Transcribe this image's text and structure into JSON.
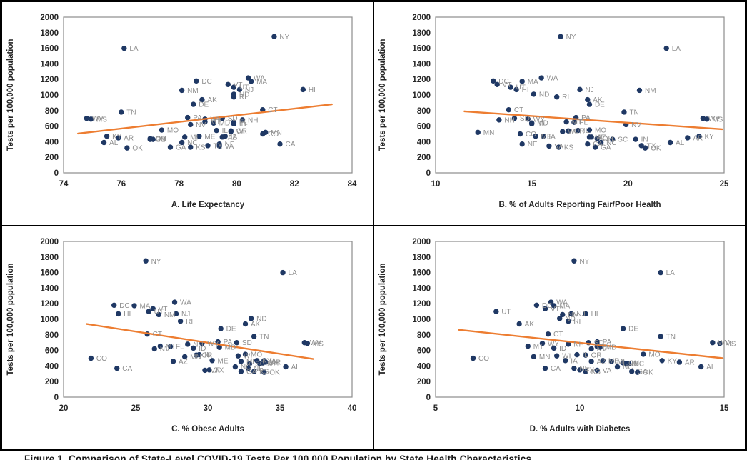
{
  "figure": {
    "caption_partial": "Figure 1. Comparison of State-Level COVID-19 Tests Per 100,000 Population by State Health Characteristics"
  },
  "colors": {
    "point": "#1f3864",
    "trend": "#ed7d31",
    "state_label": "#8f8f8f",
    "axis_text": "#262626",
    "plot_border": "#8c8c8c",
    "outer_border": "#000000",
    "background": "#ffffff"
  },
  "chart_data": {
    "type": "scatter",
    "ylabel": "Tests per 100,000 population",
    "ylim": [
      0,
      2000
    ],
    "yticks": [
      0,
      200,
      400,
      600,
      800,
      1000,
      1200,
      1400,
      1600,
      1800,
      2000
    ],
    "legend": "none",
    "grid": "off",
    "panels": [
      {
        "id": "A",
        "xlabel": "A. Life Expectancy",
        "x_key": "life_expectancy",
        "xlim": [
          74,
          84
        ],
        "xticks": [
          74,
          76,
          78,
          80,
          82,
          84
        ],
        "trend": {
          "x1": 74.5,
          "y1": 505,
          "x2": 83.3,
          "y2": 880
        }
      },
      {
        "id": "B",
        "xlabel": "B. % of Adults Reporting Fair/Poor Health",
        "x_key": "fair_poor_health",
        "xlim": [
          10,
          25
        ],
        "xticks": [
          10,
          15,
          20,
          25
        ],
        "trend": {
          "x1": 11.5,
          "y1": 790,
          "x2": 24.9,
          "y2": 560
        }
      },
      {
        "id": "C",
        "xlabel": "C. % Obese Adults",
        "x_key": "obesity",
        "xlim": [
          20,
          40
        ],
        "xticks": [
          20,
          25,
          30,
          35,
          40
        ],
        "trend": {
          "x1": 21.6,
          "y1": 940,
          "x2": 37.3,
          "y2": 490
        }
      },
      {
        "id": "D",
        "xlabel": "D. % Adults with Diabetes",
        "x_key": "diabetes",
        "xlim": [
          5,
          15
        ],
        "xticks": [
          5,
          10,
          15
        ],
        "trend": {
          "x1": 5.8,
          "y1": 865,
          "x2": 14.95,
          "y2": 500
        }
      }
    ],
    "points": [
      {
        "code": "NY",
        "tests": 1750,
        "life_expectancy": 81.3,
        "fair_poor_health": 16.5,
        "obesity": 25.7,
        "diabetes": 9.8
      },
      {
        "code": "LA",
        "tests": 1600,
        "life_expectancy": 76.1,
        "fair_poor_health": 22.0,
        "obesity": 35.2,
        "diabetes": 12.8
      },
      {
        "code": "WA",
        "tests": 1220,
        "life_expectancy": 80.4,
        "fair_poor_health": 15.5,
        "obesity": 27.7,
        "diabetes": 9.0
      },
      {
        "code": "DC",
        "tests": 1180,
        "life_expectancy": 78.6,
        "fair_poor_health": 13.0,
        "obesity": 23.5,
        "diabetes": 8.5
      },
      {
        "code": "MA",
        "tests": 1175,
        "life_expectancy": 80.5,
        "fair_poor_health": 14.5,
        "obesity": 24.9,
        "diabetes": 9.1
      },
      {
        "code": "VT",
        "tests": 1135,
        "life_expectancy": 79.7,
        "fair_poor_health": 13.2,
        "obesity": 26.2,
        "diabetes": 8.8
      },
      {
        "code": "UT",
        "tests": 1100,
        "life_expectancy": 79.9,
        "fair_poor_health": 13.9,
        "obesity": 25.9,
        "diabetes": 7.1
      },
      {
        "code": "HI",
        "tests": 1070,
        "life_expectancy": 82.3,
        "fair_poor_health": 14.2,
        "obesity": 23.8,
        "diabetes": 10.2
      },
      {
        "code": "NJ",
        "tests": 1070,
        "life_expectancy": 80.1,
        "fair_poor_health": 17.5,
        "obesity": 27.8,
        "diabetes": 9.7
      },
      {
        "code": "NM",
        "tests": 1060,
        "life_expectancy": 78.1,
        "fair_poor_health": 20.6,
        "obesity": 26.6,
        "diabetes": 9.4
      },
      {
        "code": "ND",
        "tests": 1010,
        "life_expectancy": 79.9,
        "fair_poor_health": 15.1,
        "obesity": 33.0,
        "diabetes": 9.3
      },
      {
        "code": "RI",
        "tests": 975,
        "life_expectancy": 79.9,
        "fair_poor_health": 16.3,
        "obesity": 28.1,
        "diabetes": 9.6
      },
      {
        "code": "AK",
        "tests": 940,
        "life_expectancy": 78.8,
        "fair_poor_health": 17.9,
        "obesity": 32.6,
        "diabetes": 7.9
      },
      {
        "code": "DE",
        "tests": 880,
        "life_expectancy": 78.5,
        "fair_poor_health": 18.0,
        "obesity": 30.9,
        "diabetes": 11.5
      },
      {
        "code": "CT",
        "tests": 810,
        "life_expectancy": 80.9,
        "fair_poor_health": 13.8,
        "obesity": 25.8,
        "diabetes": 8.9
      },
      {
        "code": "TN",
        "tests": 780,
        "life_expectancy": 76.0,
        "fair_poor_health": 19.8,
        "obesity": 33.2,
        "diabetes": 12.8
      },
      {
        "code": "PA",
        "tests": 710,
        "life_expectancy": 78.3,
        "fair_poor_health": 17.3,
        "obesity": 30.7,
        "diabetes": 10.6
      },
      {
        "code": "WV",
        "tests": 700,
        "life_expectancy": 74.8,
        "fair_poor_health": 23.9,
        "obesity": 36.7,
        "diabetes": 14.6
      },
      {
        "code": "SD",
        "tests": 700,
        "life_expectancy": 79.5,
        "fair_poor_health": 14.1,
        "obesity": 32.0,
        "diabetes": 10.3
      },
      {
        "code": "MS",
        "tests": 690,
        "life_expectancy": 74.95,
        "fair_poor_health": 24.1,
        "obesity": 36.9,
        "diabetes": 14.85
      },
      {
        "code": "WY",
        "tests": 690,
        "life_expectancy": 78.9,
        "fair_poor_health": 14.8,
        "obesity": 29.6,
        "diabetes": 8.7
      },
      {
        "code": "NH",
        "tests": 680,
        "life_expectancy": 80.2,
        "fair_poor_health": 13.3,
        "obesity": 28.6,
        "diabetes": 9.6
      },
      {
        "code": "MT",
        "tests": 655,
        "life_expectancy": 78.9,
        "fair_poor_health": 16.8,
        "obesity": 26.7,
        "diabetes": 8.2
      },
      {
        "code": "FL",
        "tests": 650,
        "life_expectancy": 79.9,
        "fair_poor_health": 17.2,
        "obesity": 27.4,
        "diabetes": 10.6
      },
      {
        "code": "MD",
        "tests": 640,
        "life_expectancy": 79.2,
        "fair_poor_health": 15.0,
        "obesity": 30.8,
        "diabetes": 10.7
      },
      {
        "code": "ID",
        "tests": 630,
        "life_expectancy": 79.9,
        "fair_poor_health": 15.0,
        "obesity": 29.0,
        "diabetes": 9.1
      },
      {
        "code": "NV",
        "tests": 620,
        "life_expectancy": 78.4,
        "fair_poor_health": 19.9,
        "obesity": 26.3,
        "diabetes": 10.4
      },
      {
        "code": "MO",
        "tests": 550,
        "life_expectancy": 77.4,
        "fair_poor_health": 18.0,
        "obesity": 32.6,
        "diabetes": 12.2
      },
      {
        "code": "IL",
        "tests": 545,
        "life_expectancy": 79.3,
        "fair_poor_health": 17.4,
        "obesity": 29.4,
        "diabetes": 9.9
      },
      {
        "code": "OR",
        "tests": 540,
        "life_expectancy": 79.8,
        "fair_poor_health": 16.9,
        "obesity": 29.2,
        "diabetes": 10.2
      },
      {
        "code": "WI",
        "tests": 530,
        "life_expectancy": 79.8,
        "fair_poor_health": 16.6,
        "obesity": 32.1,
        "diabetes": 9.2
      },
      {
        "code": "MN",
        "tests": 520,
        "life_expectancy": 81.0,
        "fair_poor_health": 12.2,
        "obesity": 28.4,
        "diabetes": 8.4
      },
      {
        "code": "CO",
        "tests": 500,
        "life_expectancy": 80.9,
        "fair_poor_health": 14.4,
        "obesity": 21.9,
        "diabetes": 6.3
      },
      {
        "code": "KY",
        "tests": 470,
        "life_expectancy": 75.5,
        "fair_poor_health": 23.7,
        "obesity": 33.4,
        "diabetes": 12.85
      },
      {
        "code": "ME",
        "tests": 470,
        "life_expectancy": 78.7,
        "fair_poor_health": 15.2,
        "obesity": 30.3,
        "diabetes": 10.8
      },
      {
        "code": "IA",
        "tests": 470,
        "life_expectancy": 79.6,
        "fair_poor_health": 15.6,
        "obesity": 33.9,
        "diabetes": 9.5
      },
      {
        "code": "AZ",
        "tests": 460,
        "life_expectancy": 79.5,
        "fair_poor_health": 18.1,
        "obesity": 27.6,
        "diabetes": 10.4
      },
      {
        "code": "MI",
        "tests": 460,
        "life_expectancy": 78.2,
        "fair_poor_health": 18.0,
        "obesity": 32.3,
        "diabetes": 11.1
      },
      {
        "code": "AR",
        "tests": 450,
        "life_expectancy": 75.9,
        "fair_poor_health": 23.1,
        "obesity": 34.0,
        "diabetes": 13.45
      },
      {
        "code": "OH",
        "tests": 440,
        "life_expectancy": 77.0,
        "fair_poor_health": 18.4,
        "obesity": 33.8,
        "diabetes": 11.5
      },
      {
        "code": "IN",
        "tests": 430,
        "life_expectancy": 77.1,
        "fair_poor_health": 20.4,
        "obesity": 33.6,
        "diabetes": 11.6
      },
      {
        "code": "SC",
        "tests": 430,
        "life_expectancy": 77.0,
        "fair_poor_health": 19.2,
        "obesity": 32.9,
        "diabetes": 11.7
      },
      {
        "code": "AL",
        "tests": 390,
        "life_expectancy": 75.4,
        "fair_poor_health": 22.2,
        "obesity": 35.4,
        "diabetes": 14.2
      },
      {
        "code": "NC",
        "tests": 390,
        "life_expectancy": 78.1,
        "fair_poor_health": 18.6,
        "obesity": 31.9,
        "diabetes": 11.3
      },
      {
        "code": "NE",
        "tests": 370,
        "life_expectancy": 79.4,
        "fair_poor_health": 14.5,
        "obesity": 32.8,
        "diabetes": 9.8
      },
      {
        "code": "CA",
        "tests": 370,
        "life_expectancy": 81.5,
        "fair_poor_health": 17.9,
        "obesity": 23.7,
        "diabetes": 8.8
      },
      {
        "code": "TX",
        "tests": 350,
        "life_expectancy": 79.0,
        "fair_poor_health": 20.7,
        "obesity": 30.1,
        "diabetes": 10.0
      },
      {
        "code": "VA",
        "tests": 345,
        "life_expectancy": 79.4,
        "fair_poor_health": 15.9,
        "obesity": 29.8,
        "diabetes": 10.6
      },
      {
        "code": "KS",
        "tests": 330,
        "life_expectancy": 78.4,
        "fair_poor_health": 16.4,
        "obesity": 33.2,
        "diabetes": 10.2
      },
      {
        "code": "GA",
        "tests": 330,
        "life_expectancy": 77.7,
        "fair_poor_health": 18.3,
        "obesity": 32.3,
        "diabetes": 11.8
      },
      {
        "code": "OK",
        "tests": 320,
        "life_expectancy": 76.2,
        "fair_poor_health": 20.9,
        "obesity": 33.9,
        "diabetes": 12.0
      }
    ]
  }
}
